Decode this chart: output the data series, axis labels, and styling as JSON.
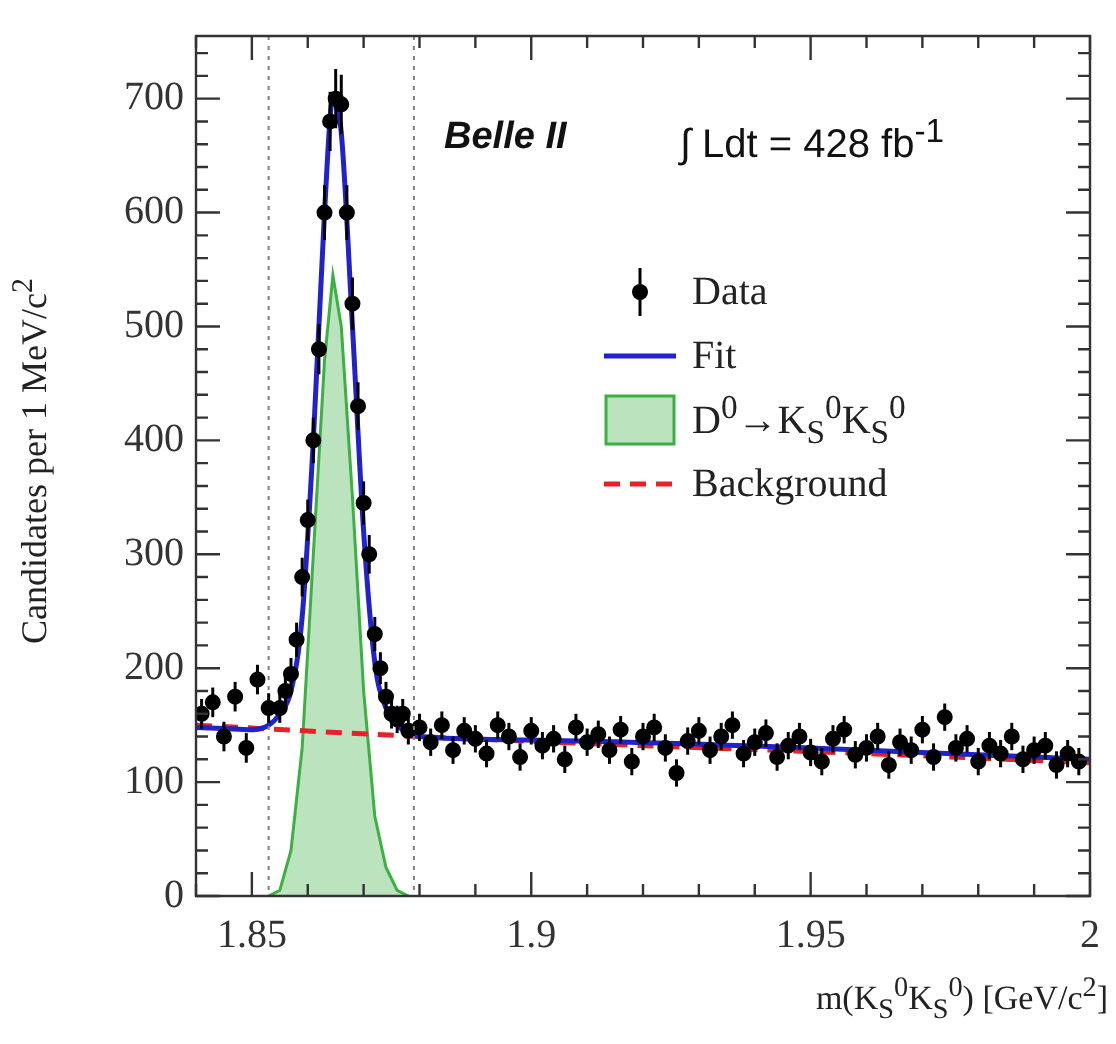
{
  "chart_data": {
    "type": "scatter",
    "xlabel": "m(K$_{S}$$^{0}$K$_{S}$$^{0}$) [GeV/c$^{2}$]",
    "ylabel": "Candidates per 1 MeV/c$^{2}$",
    "annotations": [
      "Belle II",
      "∫ Ldt = 428 fb$^{-1}$"
    ],
    "xlim": [
      1.84,
      2.0
    ],
    "xticks": [
      {
        "value": 1.84,
        "label": null
      },
      1.85,
      {
        "value": 1.86,
        "label": null
      },
      {
        "value": 1.87,
        "label": null
      },
      {
        "value": 1.88,
        "label": null
      },
      {
        "value": 1.89,
        "label": null
      },
      1.9,
      {
        "value": 1.91,
        "label": null
      },
      {
        "value": 1.92,
        "label": null
      },
      {
        "value": 1.93,
        "label": null
      },
      {
        "value": 1.94,
        "label": null
      },
      1.95,
      {
        "value": 1.96,
        "label": null
      },
      {
        "value": 1.97,
        "label": null
      },
      {
        "value": 1.98,
        "label": null
      },
      {
        "value": 1.99,
        "label": null
      },
      {
        "value": 2,
        "label": "2"
      }
    ],
    "ylim": [
      0,
      755
    ],
    "yticks": [
      0,
      {
        "value": 20,
        "label": null
      },
      {
        "value": 40,
        "label": null
      },
      {
        "value": 60,
        "label": null
      },
      {
        "value": 80,
        "label": null
      },
      100,
      {
        "value": 120,
        "label": null
      },
      {
        "value": 140,
        "label": null
      },
      {
        "value": 160,
        "label": null
      },
      {
        "value": 180,
        "label": null
      },
      200,
      {
        "value": 220,
        "label": null
      },
      {
        "value": 240,
        "label": null
      },
      {
        "value": 260,
        "label": null
      },
      {
        "value": 280,
        "label": null
      },
      300,
      {
        "value": 320,
        "label": null
      },
      {
        "value": 340,
        "label": null
      },
      {
        "value": 360,
        "label": null
      },
      {
        "value": 380,
        "label": null
      },
      400,
      {
        "value": 420,
        "label": null
      },
      {
        "value": 440,
        "label": null
      },
      {
        "value": 460,
        "label": null
      },
      {
        "value": 480,
        "label": null
      },
      500,
      {
        "value": 520,
        "label": null
      },
      {
        "value": 540,
        "label": null
      },
      {
        "value": 560,
        "label": null
      },
      {
        "value": 580,
        "label": null
      },
      600,
      {
        "value": 620,
        "label": null
      },
      {
        "value": 640,
        "label": null
      },
      {
        "value": 660,
        "label": null
      },
      {
        "value": 680,
        "label": null
      },
      700,
      {
        "value": 720,
        "label": null
      },
      {
        "value": 740,
        "label": null
      }
    ],
    "grid": false,
    "legend": "top right",
    "ref_lines": [
      {
        "axis": "x",
        "value": 1.853,
        "color": "#808080",
        "line_style": "dotted"
      },
      {
        "axis": "x",
        "value": 1.879,
        "color": "#808080",
        "line_style": "dotted"
      }
    ],
    "series": [
      {
        "name": "Data",
        "color": "#000000",
        "marker": "circle",
        "x": [
          1.841,
          1.843,
          1.845,
          1.847,
          1.849,
          1.851,
          1.853,
          1.855,
          1.856,
          1.857,
          1.858,
          1.859,
          1.86,
          1.861,
          1.862,
          1.863,
          1.864,
          1.865,
          1.866,
          1.867,
          1.868,
          1.869,
          1.87,
          1.871,
          1.872,
          1.873,
          1.874,
          1.875,
          1.876,
          1.877,
          1.878,
          1.88,
          1.882,
          1.884,
          1.886,
          1.888,
          1.89,
          1.892,
          1.894,
          1.896,
          1.898,
          1.9,
          1.902,
          1.904,
          1.906,
          1.908,
          1.91,
          1.912,
          1.914,
          1.916,
          1.918,
          1.92,
          1.922,
          1.924,
          1.926,
          1.928,
          1.93,
          1.932,
          1.934,
          1.936,
          1.938,
          1.94,
          1.942,
          1.944,
          1.946,
          1.948,
          1.95,
          1.952,
          1.954,
          1.956,
          1.958,
          1.96,
          1.962,
          1.964,
          1.966,
          1.968,
          1.97,
          1.972,
          1.974,
          1.976,
          1.978,
          1.98,
          1.982,
          1.984,
          1.986,
          1.988,
          1.99,
          1.992,
          1.994,
          1.996,
          1.998
        ],
        "values": [
          160,
          170,
          140,
          175,
          130,
          190,
          165,
          165,
          180,
          195,
          225,
          280,
          330,
          400,
          480,
          600,
          680,
          700,
          695,
          600,
          520,
          430,
          345,
          300,
          230,
          200,
          175,
          160,
          155,
          160,
          145,
          148,
          135,
          150,
          128,
          145,
          138,
          125,
          150,
          140,
          122,
          145,
          132,
          138,
          120,
          148,
          135,
          142,
          128,
          146,
          118,
          140,
          148,
          130,
          108,
          136,
          145,
          128,
          140,
          150,
          125,
          135,
          143,
          122,
          132,
          140,
          126,
          118,
          138,
          146,
          124,
          130,
          140,
          115,
          135,
          128,
          146,
          122,
          157,
          130,
          138,
          118,
          132,
          125,
          140,
          120,
          128,
          132,
          115,
          125,
          118
        ],
        "errors": [
          13,
          13,
          13,
          13,
          13,
          13,
          13,
          13,
          13,
          14,
          15,
          17,
          18,
          20,
          22,
          24,
          26,
          26,
          26,
          24,
          23,
          21,
          19,
          17,
          15,
          14,
          13,
          13,
          12,
          13,
          12,
          12,
          12,
          12,
          12,
          12,
          12,
          12,
          12,
          12,
          12,
          12,
          12,
          12,
          12,
          12,
          12,
          12,
          12,
          12,
          12,
          12,
          12,
          12,
          12,
          12,
          12,
          12,
          12,
          12,
          12,
          12,
          12,
          12,
          12,
          12,
          12,
          12,
          12,
          12,
          12,
          12,
          12,
          12,
          12,
          12,
          12,
          12,
          12,
          12,
          12,
          12,
          12,
          12,
          12,
          12,
          12,
          12,
          12,
          12,
          12
        ]
      },
      {
        "name": "Fit",
        "type": "line",
        "color": "#2222cc",
        "marker": "none",
        "line_style": "solid",
        "x": [
          1.84,
          1.845,
          1.85,
          1.853,
          1.855,
          1.857,
          1.859,
          1.861,
          1.863,
          1.8645,
          1.866,
          1.868,
          1.87,
          1.872,
          1.874,
          1.876,
          1.878,
          1.88,
          1.9,
          1.95,
          2.0
        ],
        "values": [
          148,
          147,
          146,
          150,
          160,
          180,
          245,
          400,
          600,
          700,
          670,
          500,
          320,
          205,
          165,
          150,
          143,
          140,
          137,
          130,
          120
        ]
      },
      {
        "name": "D$^{0}$→K$_{S}$$^{0}$K$_{S}$$^{0}$",
        "type": "area",
        "color": "#3cb043",
        "x": [
          1.853,
          1.855,
          1.857,
          1.859,
          1.861,
          1.863,
          1.8645,
          1.866,
          1.868,
          1.87,
          1.872,
          1.874,
          1.876,
          1.878
        ],
        "values": [
          0,
          5,
          40,
          130,
          300,
          470,
          545,
          500,
          350,
          180,
          70,
          25,
          5,
          0
        ]
      },
      {
        "name": "Background",
        "type": "line",
        "color": "#e8202a",
        "marker": "none",
        "line_style": "dashed",
        "x": [
          1.84,
          1.88,
          1.92,
          1.96,
          2.0
        ],
        "values": [
          150,
          140,
          132,
          125,
          117
        ]
      }
    ]
  }
}
